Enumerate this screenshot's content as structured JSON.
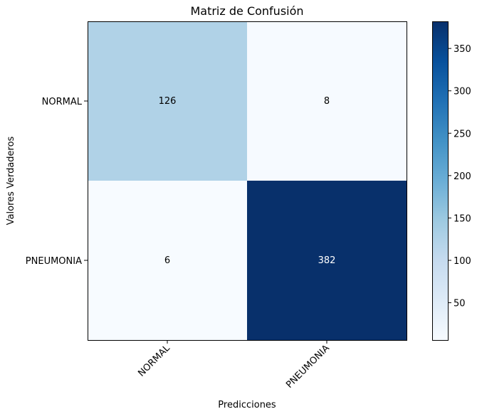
{
  "chart_data": {
    "type": "heatmap",
    "title": "Matriz de Confusión",
    "xlabel": "Predicciones",
    "ylabel": "Valores Verdaderos",
    "x_categories": [
      "NORMAL",
      "PNEUMONIA"
    ],
    "y_categories": [
      "NORMAL",
      "PNEUMONIA"
    ],
    "values": [
      [
        126,
        8
      ],
      [
        6,
        382
      ]
    ],
    "cell_labels": [
      [
        "126",
        "8"
      ],
      [
        "6",
        "382"
      ]
    ],
    "colormap": "Blues",
    "colorbar": {
      "range": [
        6,
        382
      ],
      "ticks": [
        50,
        100,
        150,
        200,
        250,
        300,
        350
      ],
      "tick_labels": [
        "50",
        "100",
        "150",
        "200",
        "250",
        "300",
        "350"
      ]
    }
  }
}
